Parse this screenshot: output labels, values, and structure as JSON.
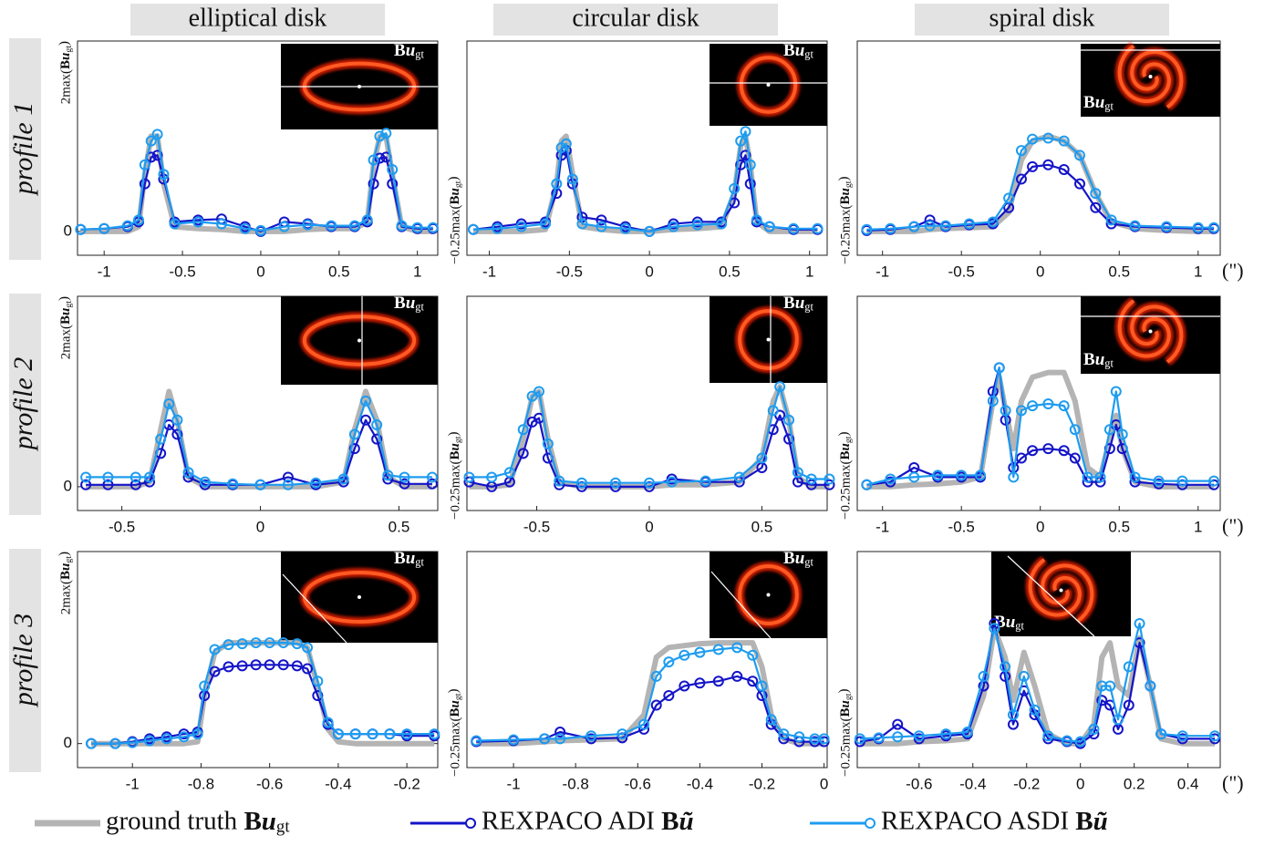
{
  "columns": [
    "elliptical disk",
    "circular disk",
    "spiral disk"
  ],
  "rows": [
    "profile 1",
    "profile 2",
    "profile 3"
  ],
  "inset_label": "Bugt",
  "legend": [
    {
      "name": "ground truth Bugt",
      "color": "#b4b4b4",
      "marker": "none"
    },
    {
      "name": "REXPACO ADI Bũ",
      "color": "#1414c8",
      "marker": "circle"
    },
    {
      "name": "REXPACO ASDI Bũ",
      "color": "#1e9cf0",
      "marker": "circle"
    }
  ],
  "chart_data": [
    {
      "type": "line",
      "x": [
        -1.15,
        -1.0,
        -0.85,
        -0.78,
        -0.74,
        -0.7,
        -0.66,
        -0.62,
        -0.55,
        -0.4,
        -0.25,
        -0.1,
        0,
        0.15,
        0.3,
        0.45,
        0.6,
        0.68,
        0.72,
        0.76,
        0.8,
        0.84,
        0.9,
        1.0,
        1.1
      ],
      "series": [
        {
          "values": [
            0,
            0,
            0,
            0.05,
            0.6,
            1.0,
            1.0,
            0.5,
            0.05,
            0.03,
            0.02,
            0,
            0,
            0,
            0.02,
            0.03,
            0.03,
            0.1,
            0.7,
            1.0,
            1.0,
            0.6,
            0.05,
            0,
            0
          ]
        },
        {
          "values": [
            0.02,
            0.03,
            0.05,
            0.1,
            0.5,
            0.78,
            0.8,
            0.55,
            0.1,
            0.12,
            0.13,
            0.05,
            0,
            0.1,
            0.08,
            0.05,
            0.05,
            0.1,
            0.5,
            0.77,
            0.78,
            0.5,
            0.05,
            0.03,
            0.03
          ]
        },
        {
          "values": [
            0.02,
            0.03,
            0.06,
            0.12,
            0.7,
            0.95,
            1.02,
            0.6,
            0.08,
            0.1,
            0.08,
            0.03,
            0.01,
            0.05,
            0.07,
            0.06,
            0.06,
            0.12,
            0.75,
            1.0,
            1.03,
            0.65,
            0.06,
            0.04,
            0.04
          ]
        }
      ],
      "xlim": [
        -1.17,
        1.13
      ],
      "ylim": [
        -0.25,
        2
      ],
      "xticks": [
        -1,
        -0.5,
        0,
        0.5,
        1
      ],
      "yticks": [
        0,
        {
          "value": 2,
          "label": "2max(Bugt)"
        }
      ]
    },
    {
      "type": "line",
      "x": [
        -1.1,
        -0.95,
        -0.8,
        -0.65,
        -0.58,
        -0.55,
        -0.52,
        -0.48,
        -0.42,
        -0.3,
        -0.15,
        0,
        0.15,
        0.3,
        0.45,
        0.53,
        0.57,
        0.6,
        0.63,
        0.67,
        0.75,
        0.9,
        1.05
      ],
      "series": [
        {
          "values": [
            0,
            0,
            0,
            0.02,
            0.5,
            0.95,
            1.0,
            0.6,
            0.05,
            0.02,
            0,
            0,
            0.02,
            0.03,
            0.05,
            0.4,
            0.9,
            1.0,
            0.7,
            0.1,
            0,
            0,
            0
          ]
        },
        {
          "values": [
            0.02,
            0.05,
            0.08,
            0.1,
            0.4,
            0.8,
            0.85,
            0.5,
            0.15,
            0.12,
            0.05,
            0,
            0.08,
            0.1,
            0.1,
            0.3,
            0.7,
            0.8,
            0.5,
            0.1,
            0.05,
            0.02,
            0.02
          ]
        },
        {
          "values": [
            0.02,
            0.03,
            0.05,
            0.08,
            0.5,
            0.88,
            0.92,
            0.55,
            0.08,
            0.05,
            0.03,
            0,
            0.05,
            0.07,
            0.08,
            0.45,
            0.95,
            1.05,
            0.7,
            0.12,
            0.05,
            0.03,
            0.03
          ]
        }
      ],
      "xlim": [
        -1.14,
        1.11
      ],
      "ylim": [
        -0.25,
        2
      ],
      "xticks": [
        -1,
        -0.5,
        0,
        0.5,
        1
      ],
      "yticks": [
        {
          "value": -0.25,
          "label": "−0.25max(Bugt)"
        }
      ]
    },
    {
      "type": "line",
      "x": [
        -1.1,
        -0.95,
        -0.8,
        -0.7,
        -0.6,
        -0.45,
        -0.3,
        -0.2,
        -0.12,
        -0.05,
        0.05,
        0.15,
        0.25,
        0.35,
        0.45,
        0.6,
        0.8,
        1.0,
        1.1
      ],
      "series": [
        {
          "values": [
            0,
            0,
            0,
            0.02,
            0.03,
            0.04,
            0.05,
            0.2,
            0.75,
            0.95,
            1.0,
            0.95,
            0.8,
            0.4,
            0.1,
            0.03,
            0.01,
            0,
            0
          ]
        },
        {
          "values": [
            0.01,
            0.02,
            0.05,
            0.12,
            0.05,
            0.07,
            0.08,
            0.25,
            0.55,
            0.68,
            0.7,
            0.65,
            0.5,
            0.25,
            0.08,
            0.05,
            0.04,
            0.03,
            0.03
          ]
        },
        {
          "values": [
            0.02,
            0.03,
            0.05,
            0.06,
            0.06,
            0.08,
            0.1,
            0.35,
            0.85,
            0.97,
            0.98,
            0.95,
            0.8,
            0.4,
            0.12,
            0.06,
            0.05,
            0.04,
            0.04
          ]
        }
      ],
      "xlim": [
        -1.16,
        1.14
      ],
      "ylim": [
        -0.25,
        2
      ],
      "xticks": [
        -1,
        -0.5,
        0,
        0.5,
        1
      ],
      "yticks": [
        {
          "value": -0.25,
          "label": "−0.25max(Bugt)"
        }
      ],
      "x_label": "(\")"
    },
    {
      "type": "line",
      "x": [
        -0.63,
        -0.55,
        -0.45,
        -0.4,
        -0.36,
        -0.33,
        -0.3,
        -0.26,
        -0.2,
        -0.1,
        0,
        0.1,
        0.2,
        0.3,
        0.34,
        0.38,
        0.42,
        0.46,
        0.52,
        0.62
      ],
      "series": [
        {
          "values": [
            0,
            0,
            0,
            0.05,
            0.6,
            1.0,
            0.7,
            0.1,
            0,
            0,
            0,
            0,
            0,
            0.05,
            0.6,
            1.0,
            0.7,
            0.1,
            0,
            0
          ]
        },
        {
          "values": [
            0.02,
            0.02,
            0.02,
            0.05,
            0.35,
            0.65,
            0.55,
            0.1,
            0.02,
            0.02,
            0.02,
            0.1,
            0.02,
            0.05,
            0.4,
            0.7,
            0.5,
            0.08,
            0.03,
            0.03
          ]
        },
        {
          "values": [
            0.1,
            0.1,
            0.1,
            0.1,
            0.5,
            0.87,
            0.7,
            0.15,
            0.05,
            0.03,
            0.02,
            0.02,
            0.04,
            0.08,
            0.55,
            0.9,
            0.65,
            0.12,
            0.1,
            0.1
          ]
        }
      ],
      "xlim": [
        -0.66,
        0.64
      ],
      "ylim": [
        -0.25,
        2
      ],
      "xticks": [
        -0.5,
        0,
        0.5
      ],
      "yticks": [
        0,
        {
          "value": 2,
          "label": "2max(Bugt)"
        }
      ]
    },
    {
      "type": "line",
      "x": [
        -0.8,
        -0.7,
        -0.62,
        -0.56,
        -0.52,
        -0.49,
        -0.45,
        -0.4,
        -0.3,
        -0.15,
        0,
        0.1,
        0.25,
        0.4,
        0.5,
        0.55,
        0.58,
        0.62,
        0.66,
        0.72,
        0.8
      ],
      "series": [
        {
          "values": [
            0,
            0,
            0.02,
            0.5,
            0.95,
            1.0,
            0.5,
            0.05,
            0,
            0,
            0,
            0.02,
            0.02,
            0.05,
            0.3,
            0.9,
            1.05,
            0.7,
            0.1,
            0,
            0
          ]
        },
        {
          "values": [
            0.05,
            0,
            0.05,
            0.35,
            0.68,
            0.72,
            0.3,
            0.02,
            0,
            0,
            0,
            0.08,
            0.05,
            0.05,
            0.2,
            0.6,
            0.75,
            0.5,
            0.05,
            0.02,
            0.02
          ]
        },
        {
          "values": [
            0.1,
            0.1,
            0.15,
            0.6,
            0.95,
            1.0,
            0.45,
            0.06,
            0.04,
            0.04,
            0.04,
            0.05,
            0.06,
            0.1,
            0.3,
            0.8,
            1.05,
            0.7,
            0.15,
            0.08,
            0.08
          ]
        }
      ],
      "xlim": [
        -0.81,
        0.79
      ],
      "ylim": [
        -0.25,
        2
      ],
      "xticks": [
        -0.5,
        0,
        0.5
      ],
      "yticks": [
        {
          "value": -0.25,
          "label": "−0.25max(Bugt)"
        }
      ]
    },
    {
      "type": "line",
      "x": [
        -1.1,
        -0.95,
        -0.8,
        -0.65,
        -0.5,
        -0.38,
        -0.3,
        -0.26,
        -0.22,
        -0.17,
        -0.12,
        -0.05,
        0.05,
        0.15,
        0.22,
        0.3,
        0.38,
        0.44,
        0.48,
        0.52,
        0.6,
        0.75,
        0.9,
        1.1
      ],
      "series": [
        {
          "values": [
            0,
            0,
            0.02,
            0.03,
            0.05,
            0.1,
            0.9,
            1.15,
            0.8,
            0.4,
            0.9,
            1.15,
            1.2,
            1.2,
            0.9,
            0.2,
            0.1,
            0.5,
            0.75,
            0.4,
            0.05,
            0,
            0,
            0
          ]
        },
        {
          "values": [
            0.02,
            0.05,
            0.2,
            0.1,
            0.1,
            0.1,
            1.0,
            1.25,
            0.7,
            0.2,
            0.3,
            0.38,
            0.4,
            0.38,
            0.3,
            0.05,
            0.05,
            0.4,
            0.65,
            0.4,
            0.05,
            0.03,
            0.02,
            0.02
          ]
        },
        {
          "values": [
            0.02,
            0.08,
            0.1,
            0.12,
            0.12,
            0.12,
            0.9,
            1.25,
            0.8,
            0.1,
            0.8,
            0.85,
            0.87,
            0.85,
            0.6,
            0.1,
            0.1,
            0.6,
            1.0,
            0.55,
            0.1,
            0.06,
            0.06,
            0.06
          ]
        }
      ],
      "xlim": [
        -1.16,
        1.14
      ],
      "ylim": [
        -0.25,
        2
      ],
      "xticks": [
        -1,
        -0.5,
        0,
        0.5,
        1
      ],
      "yticks": [
        {
          "value": -0.25,
          "label": "−0.25max(Bugt)"
        }
      ],
      "x_label": "(\")"
    },
    {
      "type": "line",
      "x": [
        -1.12,
        -1.05,
        -1.0,
        -0.95,
        -0.9,
        -0.85,
        -0.81,
        -0.79,
        -0.76,
        -0.72,
        -0.68,
        -0.64,
        -0.6,
        -0.56,
        -0.52,
        -0.49,
        -0.46,
        -0.43,
        -0.4,
        -0.35,
        -0.3,
        -0.25,
        -0.2,
        -0.12
      ],
      "series": [
        {
          "values": [
            0,
            0,
            0,
            0,
            0,
            0,
            0.02,
            0.5,
            0.95,
            1.05,
            1.05,
            1.05,
            1.05,
            1.05,
            1.05,
            1.0,
            0.6,
            0.15,
            0.02,
            0,
            0,
            0,
            0,
            0
          ]
        },
        {
          "values": [
            0,
            0,
            0.02,
            0.05,
            0.07,
            0.1,
            0.12,
            0.5,
            0.75,
            0.8,
            0.81,
            0.82,
            0.82,
            0.82,
            0.81,
            0.78,
            0.5,
            0.2,
            0.1,
            0.1,
            0.1,
            0.1,
            0.08,
            0.08
          ]
        },
        {
          "values": [
            0,
            0,
            0.01,
            0.03,
            0.05,
            0.07,
            0.1,
            0.6,
            0.98,
            1.03,
            1.04,
            1.05,
            1.05,
            1.05,
            1.04,
            1.0,
            0.65,
            0.22,
            0.1,
            0.1,
            0.1,
            0.1,
            0.1,
            0.1
          ]
        }
      ],
      "xlim": [
        -1.16,
        -0.11
      ],
      "ylim": [
        -0.25,
        2
      ],
      "xticks": [
        -1,
        -0.8,
        -0.6,
        -0.4,
        -0.2
      ],
      "yticks": [
        0,
        {
          "value": 2,
          "label": "2max(Bugt)"
        }
      ]
    },
    {
      "type": "line",
      "x": [
        -1.12,
        -1.0,
        -0.9,
        -0.85,
        -0.75,
        -0.65,
        -0.58,
        -0.54,
        -0.5,
        -0.45,
        -0.4,
        -0.34,
        -0.28,
        -0.23,
        -0.2,
        -0.17,
        -0.13,
        -0.08,
        -0.03,
        0
      ],
      "series": [
        {
          "values": [
            0,
            0,
            0.02,
            0.03,
            0.04,
            0.05,
            0.3,
            0.9,
            1.0,
            1.02,
            1.04,
            1.05,
            1.05,
            1.05,
            0.8,
            0.3,
            0.05,
            0,
            0,
            0
          ]
        },
        {
          "values": [
            0.02,
            0.03,
            0.05,
            0.12,
            0.05,
            0.06,
            0.15,
            0.4,
            0.5,
            0.6,
            0.63,
            0.65,
            0.7,
            0.65,
            0.5,
            0.2,
            0.05,
            0.02,
            0.02,
            0.02
          ]
        },
        {
          "values": [
            0.03,
            0.04,
            0.05,
            0.05,
            0.08,
            0.1,
            0.2,
            0.7,
            0.85,
            0.92,
            0.95,
            0.98,
            1.0,
            0.92,
            0.6,
            0.25,
            0.1,
            0.07,
            0.05,
            0.05
          ]
        }
      ],
      "xlim": [
        -1.15,
        0.01
      ],
      "ylim": [
        -0.25,
        2
      ],
      "xticks": [
        -1,
        -0.8,
        -0.6,
        -0.4,
        -0.2,
        0
      ],
      "yticks": [
        {
          "value": -0.25,
          "label": "−0.25max(Bugt)"
        }
      ]
    },
    {
      "type": "line",
      "x": [
        -0.82,
        -0.75,
        -0.68,
        -0.6,
        -0.5,
        -0.42,
        -0.36,
        -0.32,
        -0.28,
        -0.25,
        -0.21,
        -0.17,
        -0.12,
        -0.05,
        0,
        0.05,
        0.08,
        0.11,
        0.14,
        0.18,
        0.22,
        0.26,
        0.3,
        0.38,
        0.5
      ],
      "series": [
        {
          "values": [
            0,
            0,
            0,
            0.02,
            0.03,
            0.05,
            0.5,
            1.2,
            0.9,
            0.45,
            0.95,
            0.6,
            0.1,
            0,
            0,
            0.2,
            0.9,
            1.05,
            0.6,
            0.5,
            1.1,
            0.6,
            0.05,
            0,
            0
          ]
        },
        {
          "values": [
            0.02,
            0.05,
            0.2,
            0.05,
            0.08,
            0.1,
            0.6,
            1.25,
            0.7,
            0.2,
            0.55,
            0.3,
            0.05,
            0.02,
            0,
            0.1,
            0.45,
            0.4,
            0.15,
            0.4,
            1.05,
            0.6,
            0.1,
            0.05,
            0.05
          ]
        },
        {
          "values": [
            0.05,
            0.06,
            0.07,
            0.08,
            0.1,
            0.12,
            0.7,
            1.2,
            0.8,
            0.3,
            0.7,
            0.35,
            0.08,
            0.03,
            0.02,
            0.15,
            0.6,
            0.6,
            0.25,
            0.8,
            1.25,
            0.6,
            0.1,
            0.08,
            0.08
          ]
        }
      ],
      "xlim": [
        -0.83,
        0.52
      ],
      "ylim": [
        -0.25,
        2
      ],
      "xticks": [
        -0.6,
        -0.4,
        -0.2,
        0,
        0.2,
        0.4
      ],
      "yticks": [
        {
          "value": -0.25,
          "label": "−0.25max(Bugt)"
        }
      ],
      "x_label": "(\")"
    }
  ]
}
